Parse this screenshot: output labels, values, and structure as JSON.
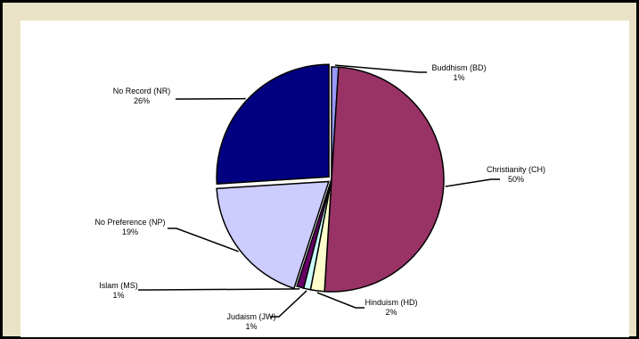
{
  "chart_data": {
    "type": "pie",
    "title": "",
    "legend": "none",
    "slices": [
      {
        "label": "Buddhism (BD)",
        "value": 1,
        "pct_label": "1%",
        "color": "#9999ff"
      },
      {
        "label": "Christianity (CH)",
        "value": 50,
        "pct_label": "50%",
        "color": "#993366"
      },
      {
        "label": "Hinduism (HD)",
        "value": 2,
        "pct_label": "2%",
        "color": "#ffffcc"
      },
      {
        "label": "Judaism (JW)",
        "value": 1,
        "pct_label": "1%",
        "color": "#ccffff"
      },
      {
        "label": "Islam (MS)",
        "value": 1,
        "pct_label": "1%",
        "color": "#660066"
      },
      {
        "label": "No Preference (NP)",
        "value": 19,
        "pct_label": "19%",
        "color": "#ccccff"
      },
      {
        "label": "No Record (NR)",
        "value": 26,
        "pct_label": "26%",
        "color": "#000080"
      }
    ]
  }
}
